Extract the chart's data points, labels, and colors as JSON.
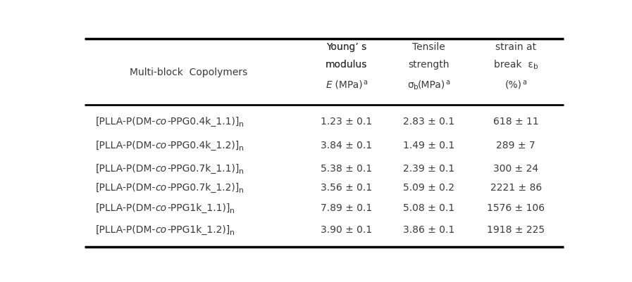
{
  "header_col": "Multi-block  Copolymers",
  "col2_h1": "Young’ s",
  "col2_h2": "modulus",
  "col2_h3_pre": "E",
  "col2_h3_mid": " (MPa)",
  "col2_h3_sup": "a",
  "col3_h1": "Tensile",
  "col3_h2": "strength",
  "col3_h3_pre": "σ",
  "col3_h3_sub": "b",
  "col3_h3_mid": "(MPa)",
  "col3_h3_sup": "a",
  "col4_h1": "strain at",
  "col4_h2_pre": "break  ε",
  "col4_h2_sub": "b",
  "col4_h3": "(%)",
  "col4_h3_sup": "a",
  "rows": [
    {
      "name": "[PLLA-P(DM-co-PPG0.4k_1.1)]n",
      "col2": "1.23 ± 0.1",
      "col3": "2.83 ± 0.1",
      "col4": "618 ± 11"
    },
    {
      "name": "[PLLA-P(DM-co-PPG0.4k_1.2)]n",
      "col2": "3.84 ± 0.1",
      "col3": "1.49 ± 0.1",
      "col4": "289 ± 7"
    },
    {
      "name": "[PLLA-P(DM-co-PPG0.7k_1.1)]n",
      "col2": "5.38 ± 0.1",
      "col3": "2.39 ± 0.1",
      "col4": "300 ± 24"
    },
    {
      "name": "[PLLA-P(DM-co-PPG0.7k_1.2)]n",
      "col2": "3.56 ± 0.1",
      "col3": "5.09 ± 0.2",
      "col4": "2221 ± 86"
    },
    {
      "name": "[PLLA-P(DM-co-PPG1k_1.1)]n",
      "col2": "7.89 ± 0.1",
      "col3": "5.08 ± 0.1",
      "col4": "1576 ± 106"
    },
    {
      "name": "[PLLA-P(DM-co-PPG1k_1.2)]n",
      "col2": "3.90 ± 0.1",
      "col3": "3.86 ± 0.1",
      "col4": "1918 ± 225"
    }
  ],
  "bg_color": "#ffffff",
  "text_color": "#3a3a3a",
  "line_color": "#000000",
  "font_size": 10,
  "header_font_size": 10
}
